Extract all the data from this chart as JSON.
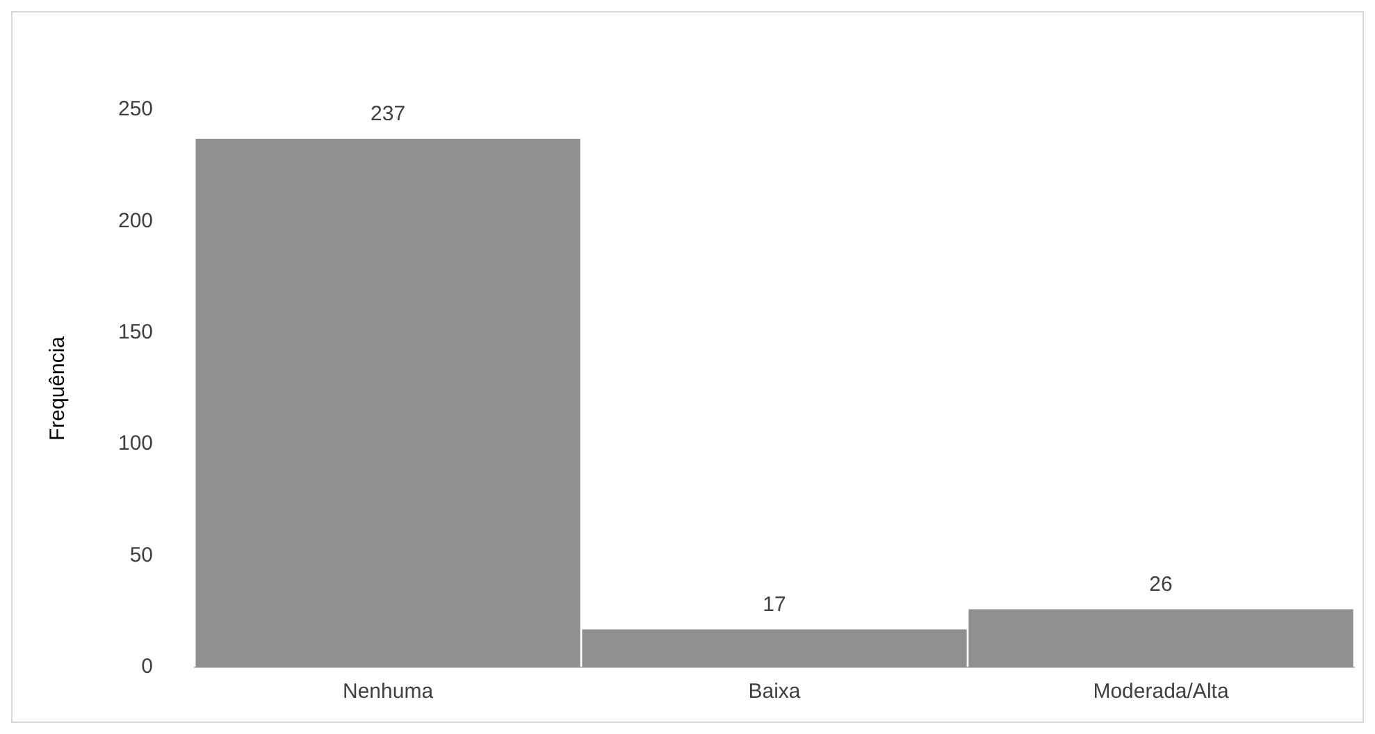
{
  "chart_data": {
    "type": "bar",
    "ylabel": "Frequência",
    "categories": [
      "Nenhuma",
      "Baixa",
      "Moderada/Alta"
    ],
    "values": [
      237,
      17,
      26
    ],
    "color": "#8f8f8f",
    "ylim": [
      0,
      250
    ],
    "yticks": [
      0,
      50,
      100,
      150,
      200,
      250
    ],
    "grid": false,
    "data_labels": true
  }
}
